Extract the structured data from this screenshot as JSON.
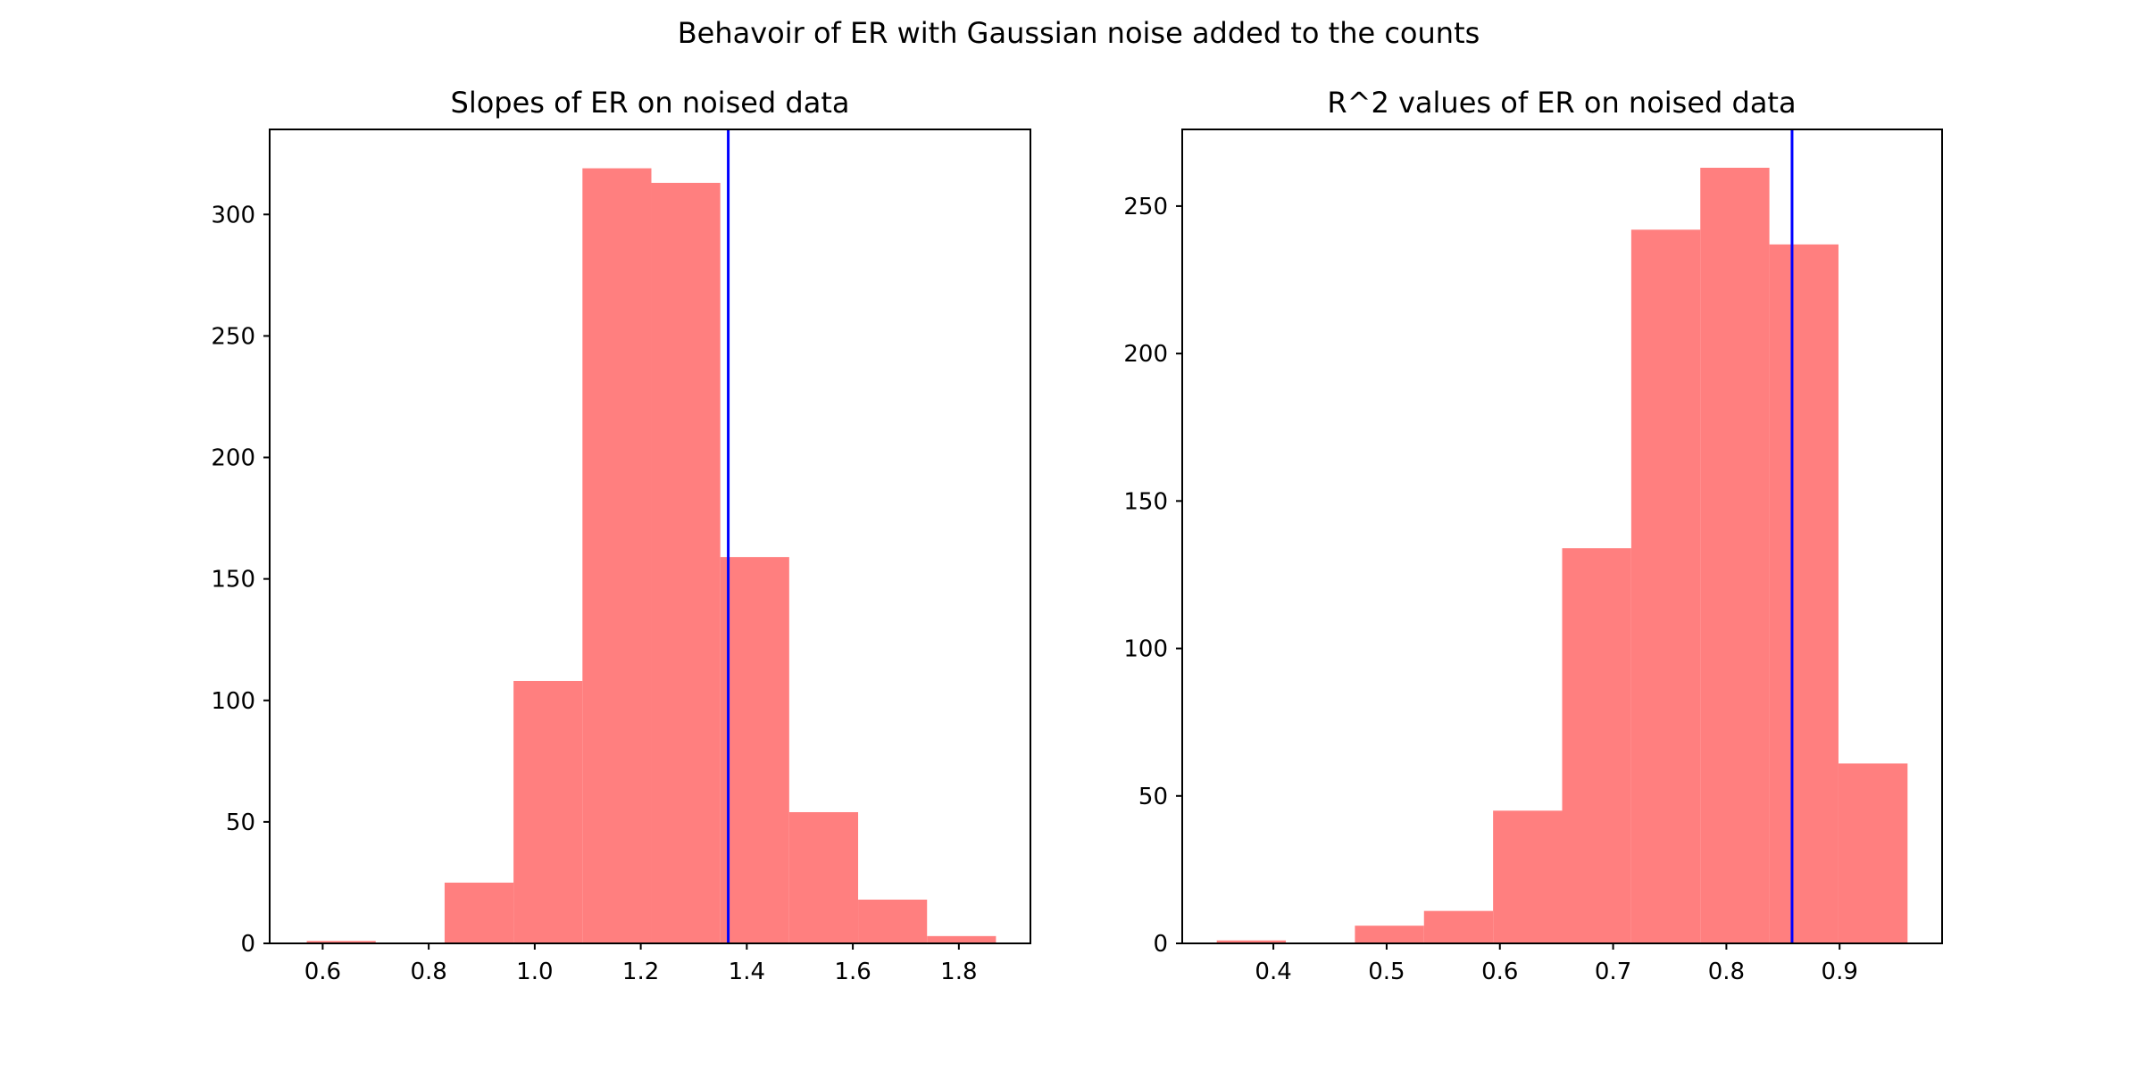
{
  "figure": {
    "suptitle": "Behavoir of ER with Gaussian noise added to the counts"
  },
  "colors": {
    "bar": "#ff7f7f",
    "reference_line": "#0000ff",
    "axis": "#000000",
    "background": "#ffffff"
  },
  "chart_data": [
    {
      "type": "bar",
      "subtype": "histogram",
      "title": "Slopes of ER on noised data",
      "xlabel": "",
      "ylabel": "",
      "bin_edges": [
        0.57,
        0.7,
        0.83,
        0.96,
        1.09,
        1.22,
        1.35,
        1.48,
        1.61,
        1.74,
        1.87
      ],
      "counts": [
        1,
        0,
        25,
        108,
        319,
        313,
        159,
        54,
        18,
        3
      ],
      "reference_line_x": 1.365,
      "xlim": [
        0.5,
        1.935
      ],
      "ylim": [
        0,
        335
      ],
      "xticks": [
        0.6,
        0.8,
        1.0,
        1.2,
        1.4,
        1.6,
        1.8
      ],
      "xtick_labels": [
        "0.6",
        "0.8",
        "1.0",
        "1.2",
        "1.4",
        "1.6",
        "1.8"
      ],
      "yticks": [
        0,
        50,
        100,
        150,
        200,
        250,
        300
      ],
      "ytick_labels": [
        "0",
        "50",
        "100",
        "150",
        "200",
        "250",
        "300"
      ],
      "grid": false
    },
    {
      "type": "bar",
      "subtype": "histogram",
      "title": "R^2 values of ER on noised data",
      "xlabel": "",
      "ylabel": "",
      "bin_edges": [
        0.35,
        0.411,
        0.472,
        0.533,
        0.594,
        0.655,
        0.716,
        0.777,
        0.838,
        0.899,
        0.96
      ],
      "counts": [
        1,
        0,
        6,
        11,
        45,
        134,
        242,
        263,
        237,
        61
      ],
      "reference_line_x": 0.858,
      "xlim": [
        0.3195,
        0.9905
      ],
      "ylim": [
        0,
        276
      ],
      "xticks": [
        0.4,
        0.5,
        0.6,
        0.7,
        0.8,
        0.9
      ],
      "xtick_labels": [
        "0.4",
        "0.5",
        "0.6",
        "0.7",
        "0.8",
        "0.9"
      ],
      "yticks": [
        0,
        50,
        100,
        150,
        200,
        250
      ],
      "ytick_labels": [
        "0",
        "50",
        "100",
        "150",
        "200",
        "250"
      ],
      "grid": false
    }
  ]
}
